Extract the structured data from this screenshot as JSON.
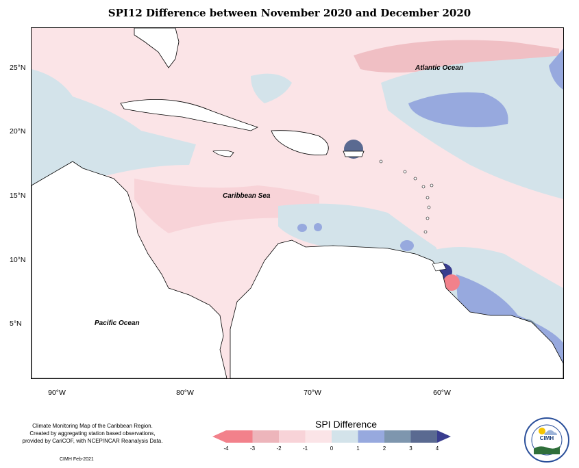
{
  "title": "SPI12 Difference between November 2020 and December 2020",
  "lat_labels": [
    "25°N",
    "20°N",
    "15°N",
    "10°N",
    "5°N"
  ],
  "lon_labels": [
    "90°W",
    "80°W",
    "70°W",
    "60°W"
  ],
  "oceans": {
    "atlantic": "Atlantic Ocean",
    "caribbean": "Caribbean Sea",
    "pacific": "Pacific Ocean"
  },
  "footnote": [
    "Climate Monitoring Map of the Caribbean Region.",
    "Created by aggregating station based observations,",
    "provided by CariCOF, with NCEP/NCAR Reanalysis Data."
  ],
  "credit": "CIMH Feb-2021",
  "legend": {
    "title": "SPI Difference",
    "ticks": [
      "-4",
      "-3",
      "-2",
      "-1",
      "0",
      "1",
      "2",
      "3",
      "4"
    ],
    "colors": [
      "#f2818b",
      "#edb5bb",
      "#f8d3d8",
      "#fbe4e7",
      "#d3e3ea",
      "#97a9de",
      "#7e96ae",
      "#5a6a91",
      "#393d8f"
    ]
  },
  "logo": {
    "text": "CIMH"
  }
}
